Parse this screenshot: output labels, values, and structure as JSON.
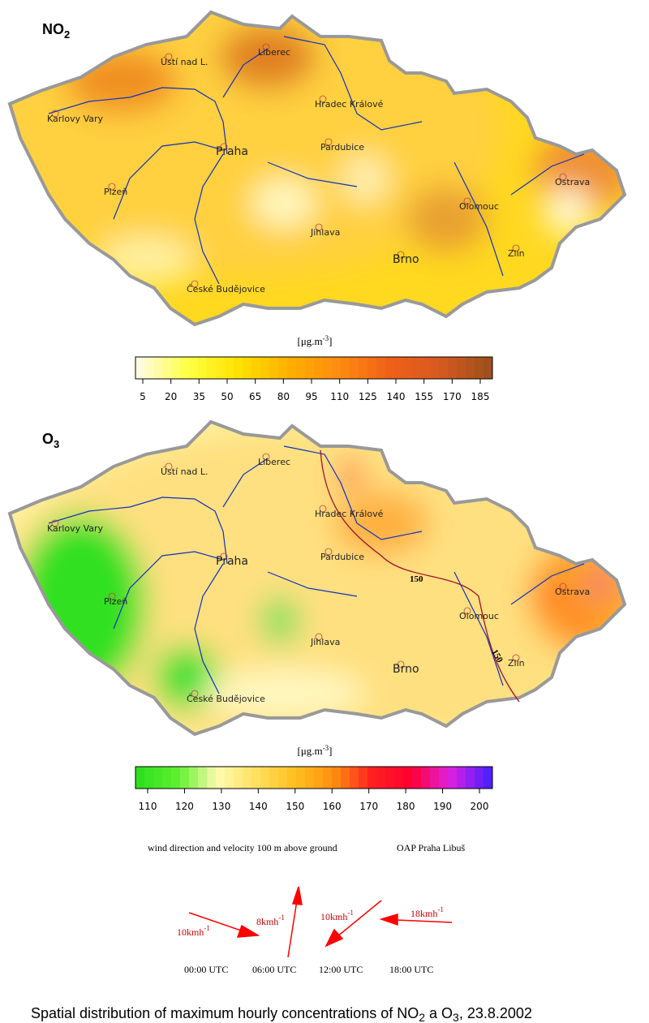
{
  "maps": [
    {
      "title": "NO",
      "title_sub": "2",
      "unit": "[μg.m",
      "unit_sup": "-3",
      "unit_end": "]",
      "colorbar_ticks": [
        5,
        20,
        35,
        50,
        65,
        80,
        95,
        110,
        125,
        140,
        155,
        170,
        185
      ],
      "color_stops": [
        "#fffbe0",
        "#ffff40",
        "#ffe000",
        "#ffb000",
        "#ff8c10",
        "#f06018",
        "#d85a20",
        "#a0501c"
      ],
      "cities": [
        "Ústí nad L.",
        "Liberec",
        "Karlovy Vary",
        "Hradec Králové",
        "Praha",
        "Pardubice",
        "Plzeň",
        "Ostrava",
        "Olomouc",
        "Jihlava",
        "Brno",
        "Zlín",
        "České Budějovice"
      ]
    },
    {
      "title": "O",
      "title_sub": "3",
      "unit": "[μg.m",
      "unit_sup": "-3",
      "unit_end": "]",
      "colorbar_ticks": [
        110,
        120,
        130,
        140,
        150,
        160,
        170,
        180,
        190,
        200
      ],
      "color_stops": [
        "#30e020",
        "#60f030",
        "#fffbb0",
        "#ffe060",
        "#ffc020",
        "#ff9010",
        "#ff2020",
        "#ff0030",
        "#e020e0",
        "#5020ff"
      ],
      "cities": [
        "Ústí nad L.",
        "Liberec",
        "Karlovy Vary",
        "Hradec Králové",
        "Praha",
        "Pardubice",
        "Plzeň",
        "Ostrava",
        "Olomouc",
        "Jihlava",
        "Brno",
        "Zlín",
        "České Budějovice"
      ],
      "contour_labels": [
        "150",
        "150"
      ]
    }
  ],
  "wind": {
    "caption": "wind direction and velocity  100 m above ground",
    "station": "OAP Praha Libuš",
    "arrows": [
      {
        "speed": "10kmh",
        "sup": "-1",
        "time": "00:00  UTC"
      },
      {
        "speed": "8kmh",
        "sup": "-1",
        "time": "06:00  UTC"
      },
      {
        "speed": "10kmh",
        "sup": "-1",
        "time": "12:00  UTC"
      },
      {
        "speed": "18kmh",
        "sup": "-1",
        "time": "18:00  UTC"
      }
    ]
  },
  "caption": [
    "Spatial distribution of maximum hourly concentrations of NO",
    "2",
    " a O",
    "3",
    ", 23.8.2002"
  ]
}
